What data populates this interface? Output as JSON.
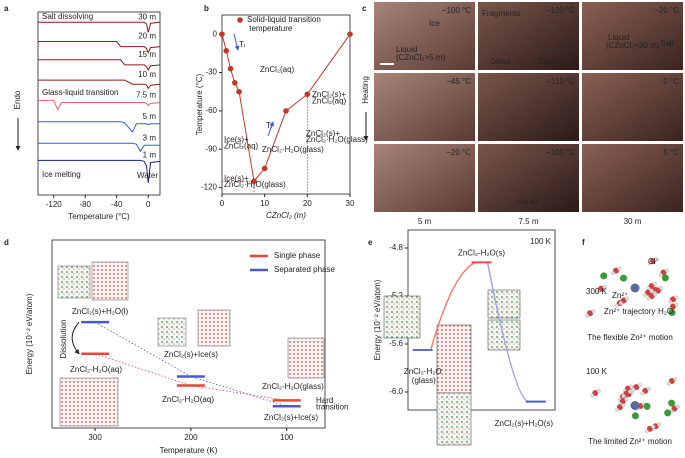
{
  "panel_letters": [
    "a",
    "b",
    "c",
    "d",
    "e",
    "f"
  ],
  "chart_data": [
    {
      "type": "line",
      "xlabel": "Temperature (°C)",
      "ylabel": "Endo",
      "x": [
        -140,
        -120,
        -115,
        -110,
        -60,
        -40,
        -35,
        -30,
        -20,
        -15,
        -10,
        -5,
        -2,
        0,
        3,
        15
      ],
      "xlim": [
        -140,
        15
      ],
      "xticks": [
        -120,
        -80,
        -40,
        0
      ],
      "ylim": [
        0,
        18
      ],
      "series": [
        {
          "name": "30 m",
          "color": "#8b1a1a",
          "values": [
            17,
            17,
            17,
            17,
            17,
            17,
            17,
            17,
            17,
            17,
            17,
            17,
            16.8,
            16.0,
            16.9,
            17.0
          ]
        },
        {
          "name": "20 m",
          "color": "#8b1a1a",
          "values": [
            15.1,
            15.1,
            15.1,
            15.1,
            15.1,
            15.1,
            14.6,
            14.6,
            14.6,
            14.6,
            14.6,
            14.6,
            14.4,
            14.0,
            14.5,
            14.6
          ]
        },
        {
          "name": "15 m",
          "color": "#8b1a1a",
          "values": [
            13.3,
            13.3,
            13.3,
            13.3,
            13.3,
            13.3,
            13.3,
            12.8,
            12.8,
            12.8,
            12.8,
            12.8,
            12.6,
            12.3,
            12.7,
            12.8
          ]
        },
        {
          "name": "10 m",
          "color": "#8b1a1a",
          "values": [
            11.3,
            11.3,
            11.3,
            11.3,
            11.3,
            11.3,
            11.3,
            11.3,
            10.9,
            10.9,
            10.9,
            10.9,
            10.8,
            10.5,
            10.8,
            10.9
          ]
        },
        {
          "name": "7.5 m",
          "color": "#e06666",
          "values": [
            9.3,
            9.3,
            8.4,
            9.1,
            9.1,
            9.1,
            9.1,
            9.1,
            9.1,
            9.1,
            9.1,
            9.1,
            9.0,
            8.8,
            9.0,
            9.1
          ]
        },
        {
          "name": "5 m",
          "color": "#3b5bdb",
          "values": [
            7.2,
            7.2,
            7.2,
            7.2,
            7.2,
            7.2,
            7.2,
            7.1,
            6.2,
            7.0,
            7.0,
            7.0,
            7.0,
            6.9,
            7.0,
            7.0
          ]
        },
        {
          "name": "3 m",
          "color": "#3b5bdb",
          "values": [
            5.1,
            5.1,
            5.1,
            5.1,
            5.1,
            5.1,
            5.1,
            5.1,
            5.1,
            5.0,
            4.3,
            4.9,
            4.9,
            4.9,
            4.9,
            4.9
          ]
        },
        {
          "name": "1 m",
          "color": "#1a237e",
          "values": [
            3.4,
            3.4,
            3.4,
            3.4,
            3.4,
            3.4,
            3.4,
            3.4,
            3.4,
            3.4,
            3.4,
            3.3,
            2.8,
            1.2,
            3.2,
            3.3
          ]
        }
      ],
      "annotations": [
        "Salt dissolving",
        "Glass-liquid transition",
        "Ice melting",
        "Water"
      ]
    },
    {
      "type": "scatter",
      "xlabel": "CZnCl₂ (m)",
      "ylabel": "Temperature (°C)",
      "x": [
        0,
        1,
        2,
        3,
        4,
        7.5,
        10,
        15,
        20,
        30
      ],
      "xlim": [
        0,
        30
      ],
      "xticks": [
        0,
        10,
        20,
        30
      ],
      "ylim": [
        -125,
        15
      ],
      "yticks": [
        0,
        -30,
        -60,
        -90,
        -120
      ],
      "series": [
        {
          "name": "Solid-liquid transition temperature",
          "color": "#c0392b",
          "values": [
            0,
            -13,
            -27,
            -38,
            -45,
            -115,
            -105,
            -60,
            -47,
            0
          ]
        }
      ],
      "annotations": [
        "ZnCl₂(aq)",
        "Tₗ",
        "Tₗ",
        "Ice(s)+ZnCl₂(aq)",
        "ZnCl₂·H₂O(glass)",
        "Ice(s)+ZnCl₂·H₂O(glass)",
        "ZnCl₂(s)+ZnCl₂(aq)",
        "ZnCl₂(s)+ZnCl₂·H₂O(glass)"
      ]
    },
    {
      "type": "level",
      "xlabel": "Temperature (K)",
      "ylabel": "Energy (10⁻² eV/atom)",
      "x": [
        300,
        200,
        100
      ],
      "xlim": [
        345,
        60
      ],
      "xticks": [
        300,
        200,
        100
      ],
      "ylim": [
        0,
        10
      ],
      "series": [
        {
          "name": "Single phase",
          "color": "#e8463c",
          "values": [
            3.95,
            2.26,
            1.47
          ]
        },
        {
          "name": "Separated phase",
          "color": "#4a5bc4",
          "values": [
            5.63,
            2.74,
            1.16
          ]
        }
      ],
      "annotations": [
        "ZnCl₂(s)+H₂O(l)",
        "Dissolution",
        "ZnCl₂-H₂O(aq)",
        "ZnCl₂(s)+Ice(s)",
        "ZnCl₂-H₂O(aq)",
        "ZnCl₂-H₂O(glass)",
        "ZnCl₂(s)+Ice(s)",
        "Hard transition"
      ]
    },
    {
      "type": "level",
      "ylabel": "Energy (10⁻² eV/atom)",
      "categories": [
        "ZnCl₂-H₂O (glass)",
        "ZnCl₂-H₂O(s)",
        "ZnCl₂(s)+H₂O(s)"
      ],
      "values": [
        -5.65,
        -4.92,
        -6.08
      ],
      "colors": [
        "#6070c0",
        "#e05040",
        "#4a5bc4"
      ],
      "ylim": [
        -6.15,
        -4.65
      ],
      "yticks": [
        -4.8,
        -5.2,
        -5.6,
        {
          "value": -6,
          "label": "-6.0"
        }
      ],
      "annotations": [
        "100 K"
      ]
    }
  ],
  "photo_panel": {
    "side_label": "Heating",
    "columns": [
      "5 m",
      "7.5 m",
      "30 m"
    ],
    "cells": [
      {
        "temperature": "−100 °C",
        "labels": [
          "Ice",
          "Liquid",
          "(CZnCl₂>5 m)"
        ]
      },
      {
        "temperature": "−120 °C",
        "labels": [
          "Fragments",
          "Glass",
          "Cracks"
        ]
      },
      {
        "temperature": "−20 °C",
        "labels": [
          "Liquid",
          "(CZnCl₂<30 m)",
          "Salt"
        ]
      },
      {
        "temperature": "−45 °C",
        "labels": []
      },
      {
        "temperature": "−110 °C",
        "labels": []
      },
      {
        "temperature": "0 °C",
        "labels": []
      },
      {
        "temperature": "−20 °C",
        "labels": []
      },
      {
        "temperature": "−100 °C",
        "labels": [
          "Liquid"
        ]
      },
      {
        "temperature": "5 °C",
        "labels": []
      }
    ]
  },
  "simulation_panel": {
    "labels": [
      "Cl⁻",
      "300 K",
      "Zn²⁺",
      "Zn²⁺ trajectory",
      "H₂O",
      "The flexible Zn²⁺ motion",
      "100 K",
      "The limited Zn²⁺ motion"
    ]
  }
}
